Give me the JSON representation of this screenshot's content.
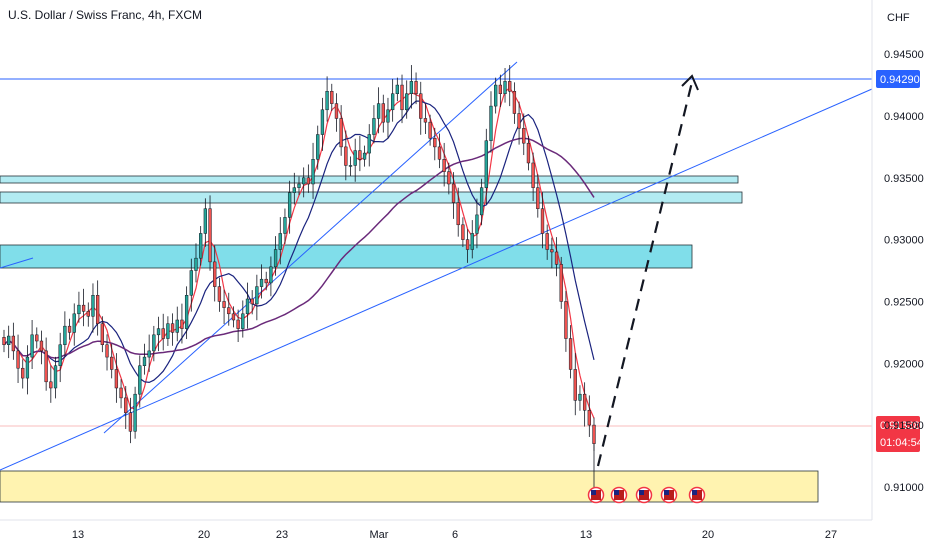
{
  "header": {
    "title": "U.S. Dollar / Swiss Franc, 4h, FXCM",
    "currency": "CHF"
  },
  "colors": {
    "bull": "#26a69a",
    "bear": "#ef5350",
    "ma_fast": "#f23645",
    "ma_mid": "#1a237e",
    "ma_slow": "#6a2a7a",
    "trendline": "#2962ff",
    "zone": "#b2ebf2",
    "demand": "#fff3b0",
    "price_tag": "#f23645",
    "level_tag": "#2962ff"
  },
  "chart_data": {
    "type": "candlestick",
    "symbol": "U.S. Dollar / Swiss Franc",
    "timeframe": "4h",
    "source": "FXCM",
    "x_ticks": [
      "13",
      "20",
      "23",
      "Mar",
      "6",
      "13",
      "20",
      "27"
    ],
    "y_ticks": [
      "0.94500",
      "0.94000",
      "0.93500",
      "0.93000",
      "0.92500",
      "0.92000",
      "0.91500",
      "0.91000"
    ],
    "ylim": [
      0.9075,
      0.9475
    ],
    "last_price": "0.91338",
    "countdown": "01:04:54",
    "level_price": "0.94290",
    "candles_close": [
      0.9215,
      0.9222,
      0.921,
      0.9196,
      0.9188,
      0.9205,
      0.9223,
      0.9218,
      0.921,
      0.9185,
      0.918,
      0.9198,
      0.9215,
      0.923,
      0.9225,
      0.924,
      0.9247,
      0.9242,
      0.9238,
      0.9255,
      0.9232,
      0.9215,
      0.9205,
      0.9195,
      0.918,
      0.9172,
      0.916,
      0.9145,
      0.9175,
      0.9198,
      0.9205,
      0.921,
      0.9223,
      0.9228,
      0.922,
      0.9232,
      0.9225,
      0.9235,
      0.9228,
      0.9255,
      0.9275,
      0.9285,
      0.9305,
      0.9325,
      0.9282,
      0.9262,
      0.925,
      0.9245,
      0.924,
      0.9235,
      0.9228,
      0.924,
      0.9252,
      0.9248,
      0.9262,
      0.9268,
      0.9265,
      0.9278,
      0.9292,
      0.9305,
      0.9318,
      0.9338,
      0.9342,
      0.9345,
      0.935,
      0.9345,
      0.9365,
      0.9385,
      0.9405,
      0.942,
      0.941,
      0.9398,
      0.9375,
      0.936,
      0.936,
      0.9372,
      0.9365,
      0.937,
      0.9385,
      0.9398,
      0.941,
      0.9395,
      0.9405,
      0.9418,
      0.9425,
      0.9405,
      0.9418,
      0.9428,
      0.9418,
      0.9398,
      0.9395,
      0.9382,
      0.9375,
      0.9365,
      0.9355,
      0.9345,
      0.933,
      0.9312,
      0.93,
      0.9292,
      0.9305,
      0.932,
      0.9342,
      0.938,
      0.9408,
      0.9425,
      0.9418,
      0.9428,
      0.942,
      0.9402,
      0.939,
      0.9378,
      0.9362,
      0.9342,
      0.9325,
      0.9305,
      0.9292,
      0.929,
      0.928,
      0.925,
      0.922,
      0.9195,
      0.917,
      0.9175,
      0.9162,
      0.915,
      0.9135
    ],
    "moving_averages": [
      "fast",
      "medium",
      "slow"
    ],
    "annotations": {
      "projection": "dashed arrow from 0.9100 to 0.9429",
      "event_icons": 5
    }
  }
}
